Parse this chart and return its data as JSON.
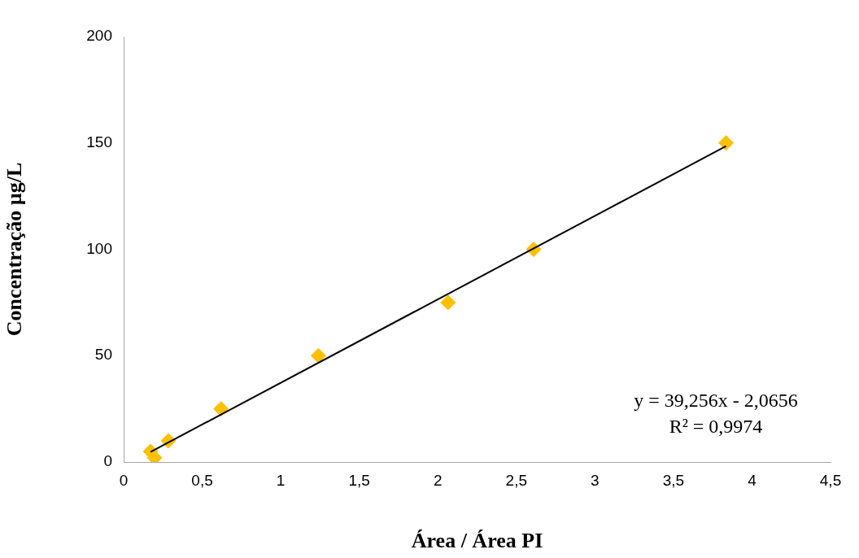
{
  "chart_data": {
    "type": "scatter",
    "xlabel": "Área / Área PI",
    "ylabel": "Concentração µg/L",
    "grid": false,
    "legend": false,
    "xlim": [
      0,
      4.5
    ],
    "ylim": [
      0,
      200
    ],
    "xticks": [
      0,
      {
        "value": 0.5,
        "label": "0,5"
      },
      1,
      {
        "value": 1.5,
        "label": "1,5"
      },
      2,
      {
        "value": 2.5,
        "label": "2,5"
      },
      3,
      {
        "value": 3.5,
        "label": "3,5"
      },
      4,
      {
        "value": 4.5,
        "label": "4,5"
      }
    ],
    "yticks": [
      0,
      50,
      100,
      150,
      200
    ],
    "series": [
      {
        "color": "#ffc000",
        "marker": "diamond",
        "x": [
          0.171,
          0.197,
          0.285,
          0.62,
          1.24,
          2.065,
          2.61,
          3.835
        ],
        "values": [
          5,
          2,
          10,
          25,
          50,
          75,
          100,
          150
        ]
      },
      {
        "type": "line",
        "color": "#000000",
        "marker": "none",
        "x": [
          0.171,
          3.835
        ],
        "values": [
          4.7,
          148.5
        ]
      }
    ],
    "annotations": [
      "y = 39,256x - 2,0656",
      "R² = 0,9974"
    ]
  }
}
